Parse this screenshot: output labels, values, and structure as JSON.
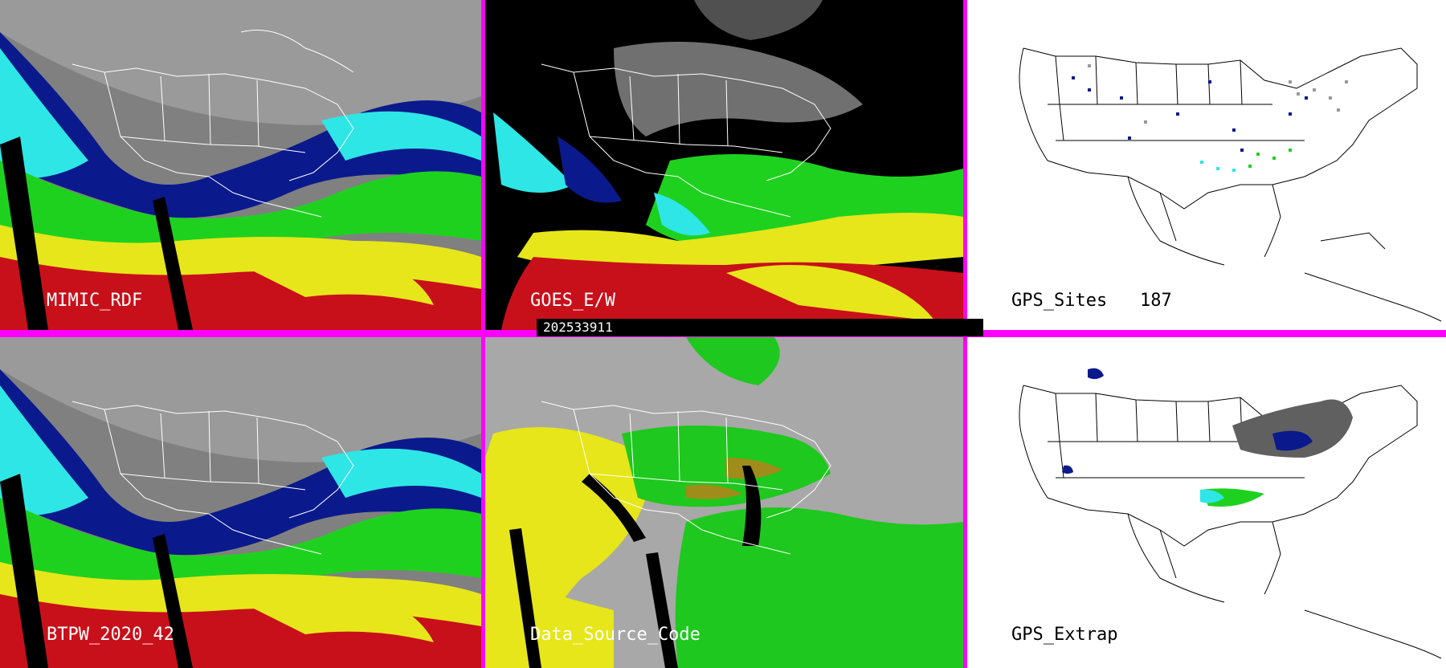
{
  "panels": [
    {
      "id": "p1",
      "label": "MIMIC_RDF",
      "theme": "satellite-moisture"
    },
    {
      "id": "p2",
      "label": "GOES_E/W",
      "theme": "satellite-dark"
    },
    {
      "id": "p3",
      "label": "GPS_Sites",
      "count": "187",
      "theme": "white-map"
    },
    {
      "id": "p4",
      "label": "BTPW_2020_42",
      "theme": "satellite-moisture"
    },
    {
      "id": "p5",
      "label": "Data_Source_Code",
      "theme": "source-code"
    },
    {
      "id": "p6",
      "label": "GPS_Extrap",
      "theme": "white-map"
    }
  ],
  "timestamp": "202533911",
  "colors": {
    "divider": "#ff00ff",
    "deep_blue": "#0a1a8c",
    "cyan": "#2ee6e6",
    "green": "#1fd11f",
    "yellow": "#e6e61a",
    "red": "#c8101a",
    "grey": "#a0a0a0",
    "source_grey": "#a8a8a8",
    "source_green": "#1ec81e",
    "source_yellow": "#e6e61a",
    "source_olive": "#a08c1a"
  }
}
